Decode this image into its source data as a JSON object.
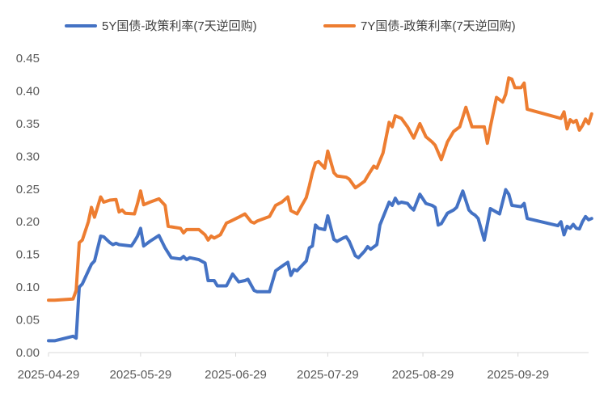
{
  "chart_data": {
    "type": "line",
    "title": "",
    "xlabel": "",
    "ylabel": "",
    "ylim": [
      0,
      0.45
    ],
    "yticks": [
      "0.00",
      "0.05",
      "0.10",
      "0.15",
      "0.20",
      "0.25",
      "0.30",
      "0.35",
      "0.40",
      "0.45"
    ],
    "xlim": [
      "2025-04-29",
      "2025-10-22"
    ],
    "xticks": [
      "2025-04-29",
      "2025-05-29",
      "2025-06-29",
      "2025-07-29",
      "2025-08-29",
      "2025-09-29"
    ],
    "grid": false,
    "legend_position": "top",
    "series": [
      {
        "name": "5Y国债-政策利率(7天逆回购)",
        "color": "#4472C4",
        "points": [
          [
            "2025-04-29",
            0.018
          ],
          [
            "2025-05-01",
            0.018
          ],
          [
            "2025-05-07",
            0.025
          ],
          [
            "2025-05-08",
            0.022
          ],
          [
            "2025-05-09",
            0.1
          ],
          [
            "2025-05-10",
            0.105
          ],
          [
            "2025-05-12",
            0.125
          ],
          [
            "2025-05-13",
            0.135
          ],
          [
            "2025-05-14",
            0.14
          ],
          [
            "2025-05-16",
            0.178
          ],
          [
            "2025-05-17",
            0.177
          ],
          [
            "2025-05-19",
            0.168
          ],
          [
            "2025-05-20",
            0.165
          ],
          [
            "2025-05-21",
            0.167
          ],
          [
            "2025-05-22",
            0.165
          ],
          [
            "2025-05-26",
            0.163
          ],
          [
            "2025-05-27",
            0.17
          ],
          [
            "2025-05-28",
            0.178
          ],
          [
            "2025-05-29",
            0.19
          ],
          [
            "2025-05-30",
            0.163
          ],
          [
            "2025-06-01",
            0.17
          ],
          [
            "2025-06-04",
            0.179
          ],
          [
            "2025-06-06",
            0.16
          ],
          [
            "2025-06-08",
            0.145
          ],
          [
            "2025-06-11",
            0.143
          ],
          [
            "2025-06-12",
            0.147
          ],
          [
            "2025-06-13",
            0.142
          ],
          [
            "2025-06-14",
            0.145
          ],
          [
            "2025-06-17",
            0.142
          ],
          [
            "2025-06-19",
            0.137
          ],
          [
            "2025-06-20",
            0.11
          ],
          [
            "2025-06-22",
            0.11
          ],
          [
            "2025-06-23",
            0.102
          ],
          [
            "2025-06-26",
            0.102
          ],
          [
            "2025-06-28",
            0.12
          ],
          [
            "2025-06-30",
            0.108
          ],
          [
            "2025-07-02",
            0.11
          ],
          [
            "2025-07-03",
            0.112
          ],
          [
            "2025-07-05",
            0.095
          ],
          [
            "2025-07-06",
            0.093
          ],
          [
            "2025-07-10",
            0.093
          ],
          [
            "2025-07-12",
            0.125
          ],
          [
            "2025-07-15",
            0.135
          ],
          [
            "2025-07-16",
            0.138
          ],
          [
            "2025-07-17",
            0.118
          ],
          [
            "2025-07-18",
            0.127
          ],
          [
            "2025-07-19",
            0.125
          ],
          [
            "2025-07-21",
            0.135
          ],
          [
            "2025-07-22",
            0.14
          ],
          [
            "2025-07-23",
            0.16
          ],
          [
            "2025-07-24",
            0.163
          ],
          [
            "2025-07-25",
            0.195
          ],
          [
            "2025-07-26",
            0.19
          ],
          [
            "2025-07-28",
            0.188
          ],
          [
            "2025-07-29",
            0.209
          ],
          [
            "2025-07-31",
            0.173
          ],
          [
            "2025-08-01",
            0.17
          ],
          [
            "2025-08-03",
            0.175
          ],
          [
            "2025-08-04",
            0.177
          ],
          [
            "2025-08-05",
            0.17
          ],
          [
            "2025-08-07",
            0.148
          ],
          [
            "2025-08-08",
            0.145
          ],
          [
            "2025-08-10",
            0.155
          ],
          [
            "2025-08-11",
            0.162
          ],
          [
            "2025-08-12",
            0.158
          ],
          [
            "2025-08-14",
            0.165
          ],
          [
            "2025-08-15",
            0.195
          ],
          [
            "2025-08-18",
            0.23
          ],
          [
            "2025-08-19",
            0.225
          ],
          [
            "2025-08-20",
            0.236
          ],
          [
            "2025-08-21",
            0.228
          ],
          [
            "2025-08-22",
            0.23
          ],
          [
            "2025-08-24",
            0.228
          ],
          [
            "2025-08-25",
            0.222
          ],
          [
            "2025-08-26",
            0.218
          ],
          [
            "2025-08-28",
            0.242
          ],
          [
            "2025-08-30",
            0.228
          ],
          [
            "2025-09-01",
            0.225
          ],
          [
            "2025-09-02",
            0.222
          ],
          [
            "2025-09-03",
            0.195
          ],
          [
            "2025-09-04",
            0.197
          ],
          [
            "2025-09-06",
            0.213
          ],
          [
            "2025-09-08",
            0.218
          ],
          [
            "2025-09-09",
            0.222
          ],
          [
            "2025-09-11",
            0.247
          ],
          [
            "2025-09-13",
            0.218
          ],
          [
            "2025-09-14",
            0.213
          ],
          [
            "2025-09-15",
            0.21
          ],
          [
            "2025-09-16",
            0.205
          ],
          [
            "2025-09-18",
            0.172
          ],
          [
            "2025-09-20",
            0.22
          ],
          [
            "2025-09-23",
            0.212
          ],
          [
            "2025-09-25",
            0.249
          ],
          [
            "2025-09-26",
            0.242
          ],
          [
            "2025-09-27",
            0.225
          ],
          [
            "2025-09-30",
            0.223
          ],
          [
            "2025-10-01",
            0.228
          ],
          [
            "2025-10-02",
            0.205
          ],
          [
            "2025-10-12",
            0.194
          ],
          [
            "2025-10-13",
            0.2
          ],
          [
            "2025-10-14",
            0.18
          ],
          [
            "2025-10-15",
            0.193
          ],
          [
            "2025-10-16",
            0.19
          ],
          [
            "2025-10-17",
            0.196
          ],
          [
            "2025-10-18",
            0.19
          ],
          [
            "2025-10-19",
            0.189
          ],
          [
            "2025-10-20",
            0.2
          ],
          [
            "2025-10-21",
            0.208
          ],
          [
            "2025-10-22",
            0.203
          ],
          [
            "2025-10-23",
            0.205
          ]
        ]
      },
      {
        "name": "7Y国债-政策利率(7天逆回购)",
        "color": "#ED7D31",
        "points": [
          [
            "2025-04-29",
            0.08
          ],
          [
            "2025-05-01",
            0.08
          ],
          [
            "2025-05-07",
            0.082
          ],
          [
            "2025-05-08",
            0.095
          ],
          [
            "2025-05-09",
            0.168
          ],
          [
            "2025-05-10",
            0.172
          ],
          [
            "2025-05-12",
            0.2
          ],
          [
            "2025-05-13",
            0.222
          ],
          [
            "2025-05-14",
            0.207
          ],
          [
            "2025-05-16",
            0.238
          ],
          [
            "2025-05-17",
            0.23
          ],
          [
            "2025-05-19",
            0.233
          ],
          [
            "2025-05-21",
            0.234
          ],
          [
            "2025-05-22",
            0.215
          ],
          [
            "2025-05-23",
            0.218
          ],
          [
            "2025-05-24",
            0.213
          ],
          [
            "2025-05-27",
            0.212
          ],
          [
            "2025-05-28",
            0.228
          ],
          [
            "2025-05-29",
            0.247
          ],
          [
            "2025-05-30",
            0.226
          ],
          [
            "2025-06-01",
            0.23
          ],
          [
            "2025-06-04",
            0.235
          ],
          [
            "2025-06-06",
            0.225
          ],
          [
            "2025-06-07",
            0.193
          ],
          [
            "2025-06-11",
            0.19
          ],
          [
            "2025-06-12",
            0.183
          ],
          [
            "2025-06-13",
            0.188
          ],
          [
            "2025-06-17",
            0.188
          ],
          [
            "2025-06-19",
            0.18
          ],
          [
            "2025-06-20",
            0.172
          ],
          [
            "2025-06-21",
            0.178
          ],
          [
            "2025-06-22",
            0.175
          ],
          [
            "2025-06-24",
            0.18
          ],
          [
            "2025-06-26",
            0.198
          ],
          [
            "2025-06-27",
            0.2
          ],
          [
            "2025-06-30",
            0.207
          ],
          [
            "2025-07-02",
            0.212
          ],
          [
            "2025-07-04",
            0.2
          ],
          [
            "2025-07-05",
            0.198
          ],
          [
            "2025-07-06",
            0.201
          ],
          [
            "2025-07-10",
            0.208
          ],
          [
            "2025-07-12",
            0.225
          ],
          [
            "2025-07-14",
            0.23
          ],
          [
            "2025-07-16",
            0.238
          ],
          [
            "2025-07-17",
            0.217
          ],
          [
            "2025-07-19",
            0.212
          ],
          [
            "2025-07-22",
            0.237
          ],
          [
            "2025-07-23",
            0.255
          ],
          [
            "2025-07-24",
            0.275
          ],
          [
            "2025-07-25",
            0.29
          ],
          [
            "2025-07-26",
            0.292
          ],
          [
            "2025-07-28",
            0.282
          ],
          [
            "2025-07-29",
            0.308
          ],
          [
            "2025-07-31",
            0.275
          ],
          [
            "2025-08-01",
            0.27
          ],
          [
            "2025-08-04",
            0.268
          ],
          [
            "2025-08-05",
            0.265
          ],
          [
            "2025-08-07",
            0.252
          ],
          [
            "2025-08-08",
            0.255
          ],
          [
            "2025-08-10",
            0.262
          ],
          [
            "2025-08-11",
            0.27
          ],
          [
            "2025-08-13",
            0.285
          ],
          [
            "2025-08-14",
            0.282
          ],
          [
            "2025-08-16",
            0.305
          ],
          [
            "2025-08-18",
            0.352
          ],
          [
            "2025-08-19",
            0.345
          ],
          [
            "2025-08-20",
            0.362
          ],
          [
            "2025-08-22",
            0.358
          ],
          [
            "2025-08-24",
            0.345
          ],
          [
            "2025-08-26",
            0.328
          ],
          [
            "2025-08-28",
            0.35
          ],
          [
            "2025-08-30",
            0.33
          ],
          [
            "2025-09-01",
            0.322
          ],
          [
            "2025-09-02",
            0.317
          ],
          [
            "2025-09-04",
            0.295
          ],
          [
            "2025-09-06",
            0.322
          ],
          [
            "2025-09-08",
            0.338
          ],
          [
            "2025-09-10",
            0.345
          ],
          [
            "2025-09-12",
            0.375
          ],
          [
            "2025-09-13",
            0.36
          ],
          [
            "2025-09-14",
            0.345
          ],
          [
            "2025-09-18",
            0.345
          ],
          [
            "2025-09-19",
            0.32
          ],
          [
            "2025-09-20",
            0.345
          ],
          [
            "2025-09-22",
            0.39
          ],
          [
            "2025-09-24",
            0.383
          ],
          [
            "2025-09-25",
            0.395
          ],
          [
            "2025-09-26",
            0.42
          ],
          [
            "2025-09-27",
            0.418
          ],
          [
            "2025-09-28",
            0.405
          ],
          [
            "2025-09-30",
            0.405
          ],
          [
            "2025-10-01",
            0.412
          ],
          [
            "2025-10-02",
            0.372
          ],
          [
            "2025-10-13",
            0.358
          ],
          [
            "2025-10-14",
            0.368
          ],
          [
            "2025-10-15",
            0.342
          ],
          [
            "2025-10-16",
            0.356
          ],
          [
            "2025-10-17",
            0.352
          ],
          [
            "2025-10-18",
            0.355
          ],
          [
            "2025-10-19",
            0.34
          ],
          [
            "2025-10-20",
            0.347
          ],
          [
            "2025-10-21",
            0.357
          ],
          [
            "2025-10-22",
            0.35
          ],
          [
            "2025-10-23",
            0.365
          ]
        ]
      }
    ]
  }
}
